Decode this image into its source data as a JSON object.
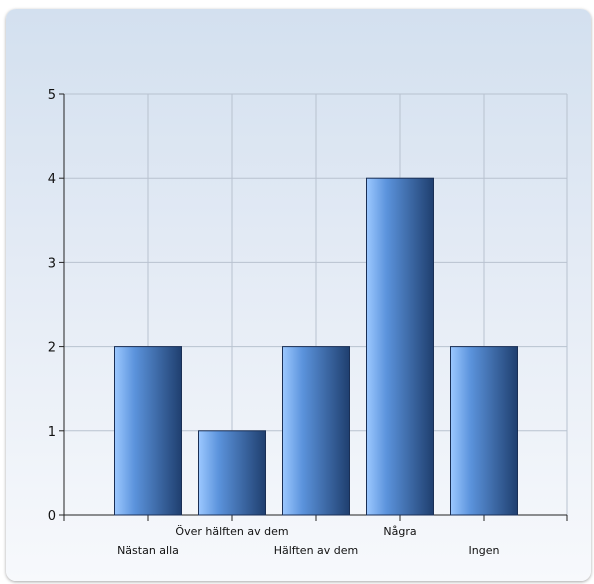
{
  "chart_data": {
    "type": "bar",
    "title": "",
    "xlabel": "",
    "ylabel": "",
    "ylim": [
      0,
      5
    ],
    "yticks": [
      "0",
      "1",
      "2",
      "3",
      "4",
      "5"
    ],
    "grid": true,
    "categories": [
      "Nästan alla",
      "Över hälften av dem",
      "Hälften av dem",
      "Några",
      "Ingen"
    ],
    "values": [
      2,
      1,
      2,
      4,
      2
    ],
    "bar_gradient": [
      "#9cc8ff",
      "#5b93dc",
      "#1f3f6f"
    ]
  }
}
